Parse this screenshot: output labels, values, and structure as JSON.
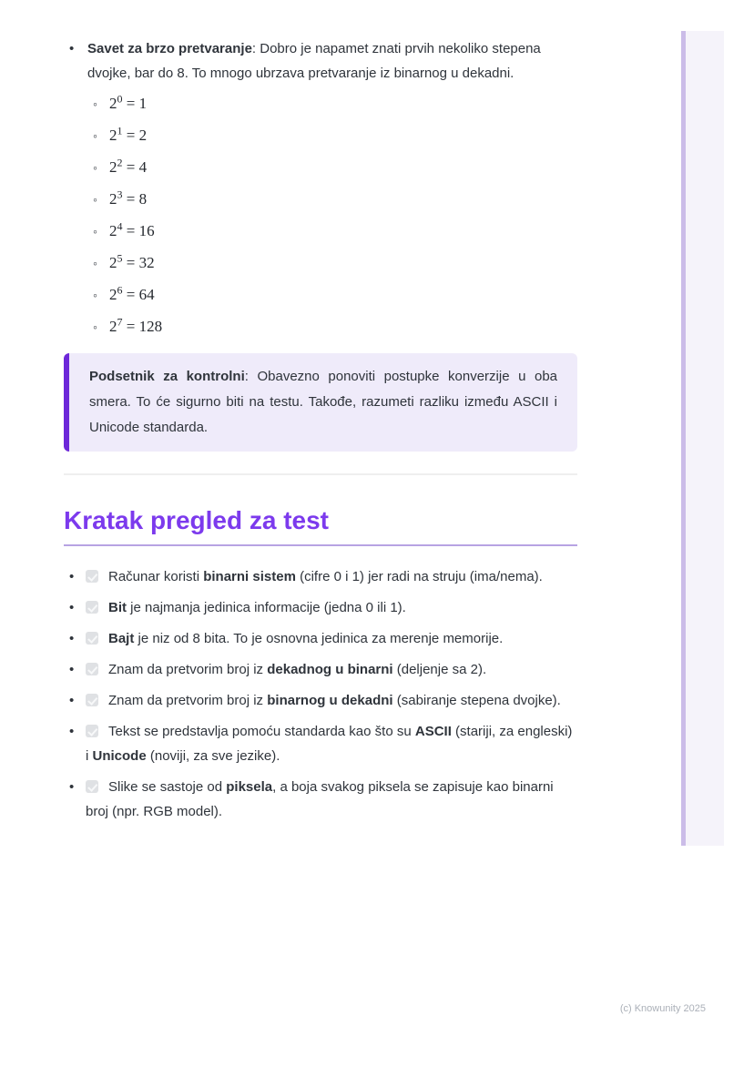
{
  "tip": {
    "bold": "Savet za brzo pretvaranje",
    "rest": ": Dobro je napamet znati prvih nekoliko stepena dvojke, bar do 8. To mnogo ubrzava pretvaranje iz binarnog u dekadni."
  },
  "powers": [
    {
      "base": "2",
      "exponent": "0",
      "result": "1"
    },
    {
      "base": "2",
      "exponent": "1",
      "result": "2"
    },
    {
      "base": "2",
      "exponent": "2",
      "result": "4"
    },
    {
      "base": "2",
      "exponent": "3",
      "result": "8"
    },
    {
      "base": "2",
      "exponent": "4",
      "result": "16"
    },
    {
      "base": "2",
      "exponent": "5",
      "result": "32"
    },
    {
      "base": "2",
      "exponent": "6",
      "result": "64"
    },
    {
      "base": "2",
      "exponent": "7",
      "result": "128"
    }
  ],
  "callout": {
    "bold": "Podsetnik za kontrolni",
    "rest": ": Obavezno ponoviti postupke konverzije u oba smera. To će sigurno biti na testu. Takođe, razumeti razliku između ASCII i Unicode standarda."
  },
  "section": {
    "title": "Kratak pregled za test"
  },
  "checklist": [
    {
      "checked": true,
      "parts": [
        {
          "text": "Računar koristi "
        },
        {
          "text": "binarni sistem",
          "bold": true
        },
        {
          "text": " (cifre 0 i 1) jer radi na struju (ima/nema)."
        }
      ]
    },
    {
      "checked": true,
      "parts": [
        {
          "text": "Bit",
          "bold": true
        },
        {
          "text": " je najmanja jedinica informacije (jedna 0 ili 1)."
        }
      ]
    },
    {
      "checked": true,
      "parts": [
        {
          "text": "Bajt",
          "bold": true
        },
        {
          "text": " je niz od 8 bita. To je osnovna jedinica za merenje memorije."
        }
      ]
    },
    {
      "checked": true,
      "parts": [
        {
          "text": "Znam da pretvorim broj iz "
        },
        {
          "text": "dekadnog u binarni",
          "bold": true
        },
        {
          "text": " (deljenje sa 2)."
        }
      ]
    },
    {
      "checked": true,
      "parts": [
        {
          "text": "Znam da pretvorim broj iz "
        },
        {
          "text": "binarnog u dekadni",
          "bold": true
        },
        {
          "text": " (sabiranje stepena dvojke)."
        }
      ]
    },
    {
      "checked": true,
      "parts": [
        {
          "text": "Tekst se predstavlja pomoću standarda kao što su "
        },
        {
          "text": "ASCII",
          "bold": true
        },
        {
          "text": " (stariji, za engleski) i "
        },
        {
          "text": "Unicode",
          "bold": true
        },
        {
          "text": " (noviji, za sve jezike)."
        }
      ]
    },
    {
      "checked": true,
      "parts": [
        {
          "text": "Slike se sastoje od "
        },
        {
          "text": "piksela",
          "bold": true
        },
        {
          "text": ", a boja svakog piksela se zapisuje kao binarni broj (npr. RGB model)."
        }
      ]
    }
  ],
  "footer": {
    "text": "(c) Knowunity 2025"
  },
  "colors": {
    "accent_purple": "#7C3AED",
    "callout_border": "#6D28D9",
    "callout_bg": "#EFEBFA",
    "heading_underline": "#B7A3E3",
    "side_rail_strip": "#CBBCE8",
    "side_rail_bg": "#F5F3FA"
  }
}
